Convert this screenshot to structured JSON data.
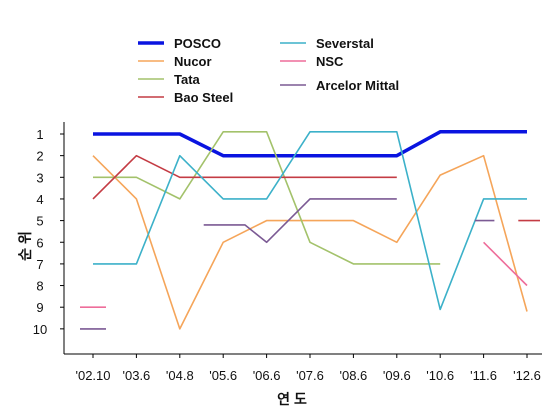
{
  "chart_data": {
    "type": "line",
    "title": "",
    "xlabel": "연 도",
    "ylabel": "순 위",
    "categories": [
      "'02.10",
      "'03.6",
      "'04.8",
      "'05.6",
      "'06.6",
      "'07.6",
      "'08.6",
      "'09.6",
      "'10.6",
      "'11.6",
      "'12.6"
    ],
    "y_ticks": [
      "1",
      "2",
      "3",
      "4",
      "5",
      "6",
      "7",
      "8",
      "9",
      "10"
    ],
    "ylim": [
      11,
      0.5
    ],
    "y_inverted": true,
    "grid": false,
    "legend_position": "top",
    "series": [
      {
        "name": "POSCO",
        "color": "#0a14e0",
        "width": 3.5,
        "points": [
          [
            0,
            1
          ],
          [
            1,
            1
          ],
          [
            2,
            1
          ],
          [
            3,
            2
          ],
          [
            4,
            2
          ],
          [
            5,
            2
          ],
          [
            6,
            2
          ],
          [
            7,
            2
          ],
          [
            8,
            0.9
          ],
          [
            9,
            0.9
          ],
          [
            10,
            0.9
          ]
        ]
      },
      {
        "name": "Nucor",
        "color": "#f5a55a",
        "width": 1.6,
        "points": [
          [
            0,
            2
          ],
          [
            1,
            4
          ],
          [
            2,
            10
          ],
          [
            3,
            6
          ],
          [
            4,
            5
          ],
          [
            5,
            5
          ],
          [
            6,
            5
          ],
          [
            7,
            6
          ],
          [
            8,
            2.9
          ],
          [
            9,
            2
          ],
          [
            10,
            9.2
          ]
        ]
      },
      {
        "name": "Tata",
        "color": "#a3c26b",
        "width": 1.6,
        "points": [
          [
            0,
            3
          ],
          [
            1,
            3
          ],
          [
            2,
            4
          ],
          [
            3,
            0.9
          ],
          [
            4,
            0.9
          ],
          [
            5,
            6
          ],
          [
            6,
            7
          ],
          [
            7,
            7
          ],
          [
            8,
            7
          ]
        ]
      },
      {
        "name": "Bao Steel",
        "color": "#c43c44",
        "width": 1.6,
        "points": [
          [
            0,
            4
          ],
          [
            1,
            2
          ],
          [
            2,
            3
          ],
          [
            3,
            3
          ],
          [
            4,
            3
          ],
          [
            5,
            3
          ],
          [
            6,
            3
          ],
          [
            7,
            3
          ]
        ],
        "extra": [
          [
            [
              9.8,
              5
            ],
            [
              10.3,
              5
            ]
          ]
        ]
      },
      {
        "name": "Severstal",
        "color": "#3cb1c9",
        "width": 1.6,
        "points": [
          [
            0,
            7
          ],
          [
            1,
            7
          ],
          [
            2,
            2
          ],
          [
            3,
            4
          ],
          [
            4,
            4
          ],
          [
            5,
            0.9
          ],
          [
            6,
            0.9
          ],
          [
            7,
            0.9
          ],
          [
            8,
            9.1
          ],
          [
            9,
            4
          ],
          [
            10,
            4
          ]
        ]
      },
      {
        "name": "NSC",
        "color": "#ee6d9a",
        "width": 1.6,
        "points": [
          [
            9,
            6
          ],
          [
            10,
            8
          ]
        ],
        "extra": [
          [
            [
              -0.3,
              9
            ],
            [
              0.3,
              9
            ]
          ]
        ]
      },
      {
        "name": "Arcelor Mittal",
        "color": "#7b5a94",
        "width": 1.6,
        "points": [
          [
            2.55,
            5.2
          ],
          [
            3.5,
            5.2
          ],
          [
            4,
            6
          ],
          [
            5,
            4
          ],
          [
            6,
            4
          ],
          [
            7,
            4
          ]
        ],
        "extra": [
          [
            [
              -0.3,
              10
            ],
            [
              0.3,
              10
            ]
          ],
          [
            [
              8.8,
              5
            ],
            [
              9.25,
              5
            ]
          ]
        ]
      }
    ]
  }
}
